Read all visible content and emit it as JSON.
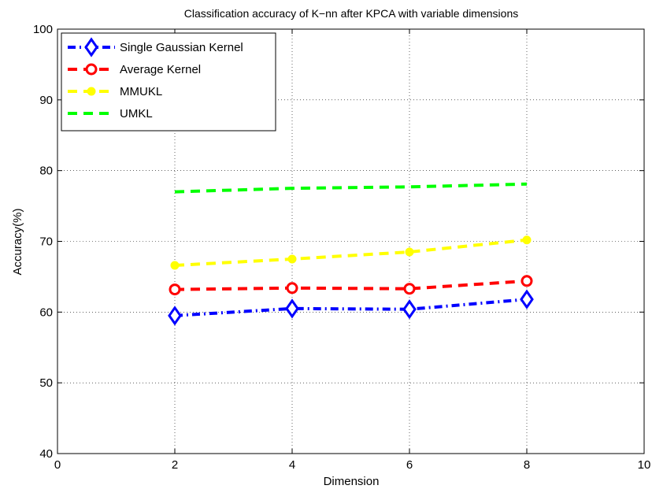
{
  "chart_data": {
    "type": "line",
    "title": "Classification accuracy of K−nn after KPCA with variable dimensions",
    "xlabel": "Dimension",
    "ylabel": "Accuracy(%)",
    "xlim": [
      0,
      10
    ],
    "ylim": [
      40,
      100
    ],
    "xticks": [
      "0",
      "2",
      "4",
      "6",
      "8",
      "10"
    ],
    "yticks": [
      "40",
      "50",
      "60",
      "70",
      "80",
      "90",
      "100"
    ],
    "grid": true,
    "legend_position": "top-left",
    "x": [
      2,
      4,
      6,
      8
    ],
    "series": [
      {
        "name": "Single Gaussian Kernel",
        "values": [
          59.5,
          60.5,
          60.4,
          61.8
        ],
        "color": "#0000ff",
        "marker": "diamond",
        "line": "dash-dot"
      },
      {
        "name": "Average Kernel",
        "values": [
          63.2,
          63.4,
          63.3,
          64.4
        ],
        "color": "#ff0000",
        "marker": "circle",
        "line": "dashed"
      },
      {
        "name": "MMUKL",
        "values": [
          66.6,
          67.5,
          68.5,
          70.2
        ],
        "color": "#ffff00",
        "marker": "dot",
        "line": "dashed"
      },
      {
        "name": "UMKL",
        "values": [
          77.0,
          77.5,
          77.7,
          78.1
        ],
        "color": "#00ff00",
        "marker": "none",
        "line": "dashed"
      }
    ]
  }
}
